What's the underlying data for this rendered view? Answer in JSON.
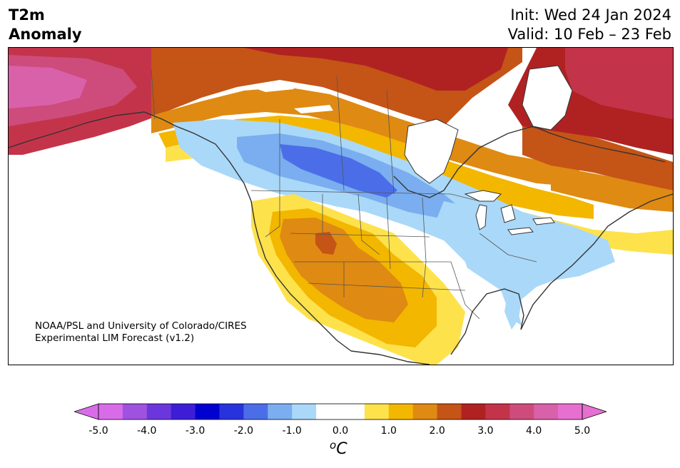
{
  "title": {
    "left_line1": "T2m",
    "left_line2": "Anomaly",
    "init": "Init: Wed 24 Jan 2024",
    "valid": "Valid: 10 Feb – 23 Feb"
  },
  "credit": {
    "line1": "NOAA/PSL and University of Colorado/CIRES",
    "line2": "Experimental LIM Forecast (v1.2)"
  },
  "colorbar": {
    "unit_sup": "o",
    "unit_base": "C",
    "ticks": [
      "-5.0",
      "-4.0",
      "-3.0",
      "-2.0",
      "-1.0",
      "0.0",
      "1.0",
      "2.0",
      "3.0",
      "4.0",
      "5.0"
    ],
    "colors": [
      "#d86ce8",
      "#9f52e0",
      "#6b37dc",
      "#3d1ed6",
      "#0000d0",
      "#2733dc",
      "#4b6ee8",
      "#7aaef0",
      "#aad8f8",
      "#ffffff",
      "#ffffff",
      "#fde24c",
      "#f3b700",
      "#df8a12",
      "#c55417",
      "#b02222",
      "#c3344a",
      "#cd4c7c",
      "#d861aa",
      "#e670d0"
    ],
    "extend_low": "#d86ce8",
    "extend_high": "#e670d0"
  },
  "legend_colors": {
    "blue_light": "#aad8f8",
    "blue_mid": "#7aaef0",
    "blue_dark": "#4b6ee8",
    "yellow": "#fde24c",
    "gold": "#f3b700",
    "orange": "#df8a12",
    "rust": "#c55417",
    "red": "#b02222",
    "crimson": "#c3344a",
    "pink": "#cd4c7c"
  }
}
